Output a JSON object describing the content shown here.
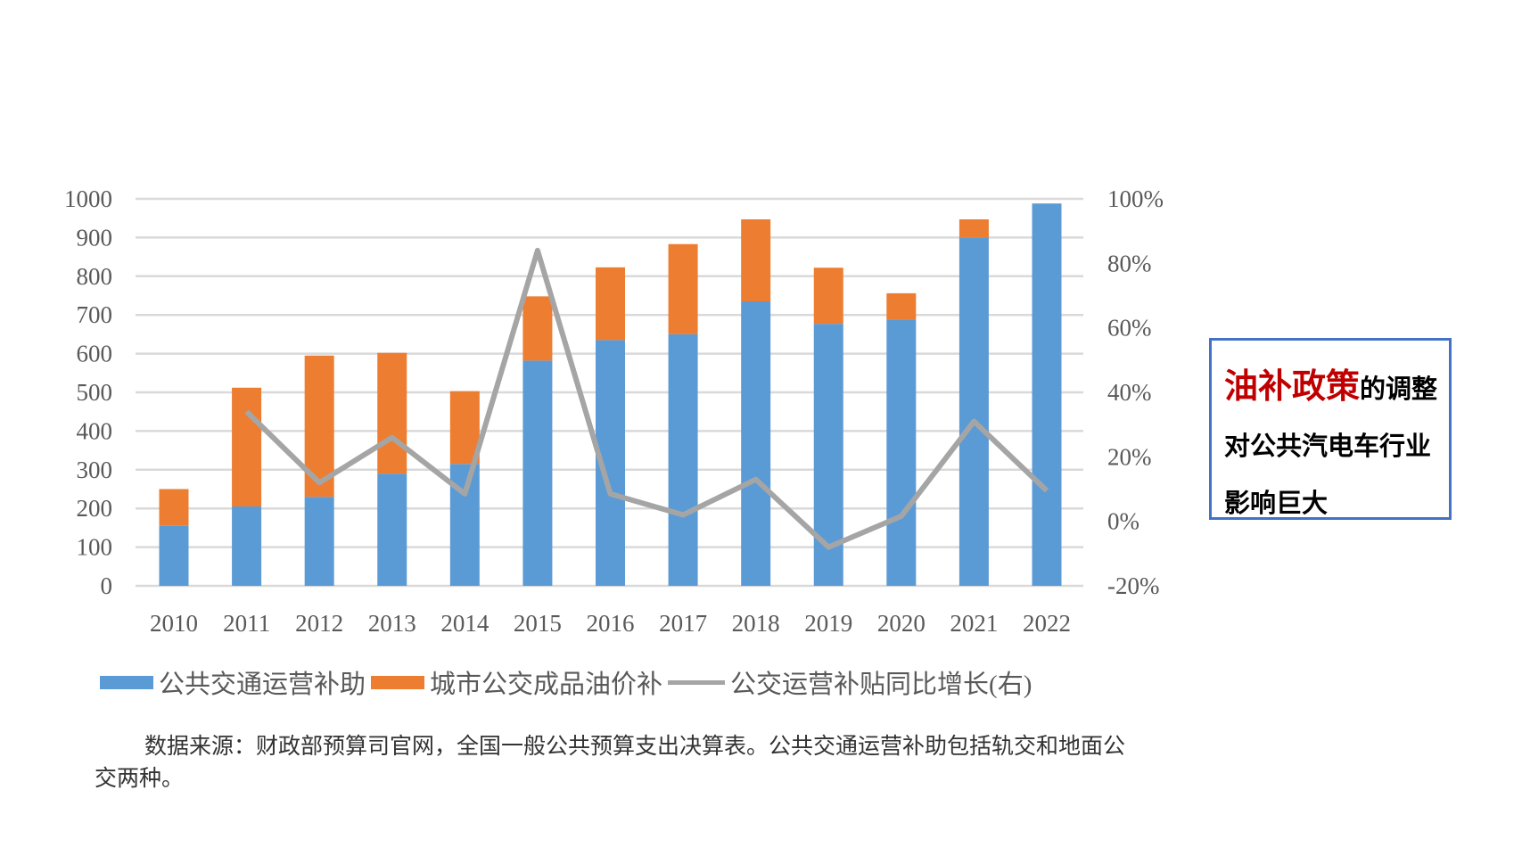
{
  "chart_data": {
    "type": "bar",
    "stacked": true,
    "categories": [
      "2010",
      "2011",
      "2012",
      "2013",
      "2014",
      "2015",
      "2016",
      "2017",
      "2018",
      "2019",
      "2020",
      "2021",
      "2022"
    ],
    "series": [
      {
        "name": "公共交通运营补助",
        "type": "bar",
        "axis": "left",
        "color": "#5b9bd5",
        "values": [
          155,
          205,
          230,
          290,
          315,
          582,
          635,
          650,
          735,
          677,
          688,
          900,
          988
        ]
      },
      {
        "name": "城市公交成品油价补",
        "type": "bar",
        "axis": "left",
        "color": "#ed7d31",
        "values": [
          95,
          307,
          365,
          312,
          188,
          166,
          188,
          233,
          212,
          145,
          68,
          47,
          0
        ]
      },
      {
        "name": "公交运营补贴同比增长(右)",
        "type": "line",
        "axis": "right",
        "color": "#a5a5a5",
        "values": [
          null,
          34,
          12,
          26,
          8.5,
          84,
          8.5,
          2,
          13,
          -8,
          1.6,
          31,
          9.5
        ]
      }
    ],
    "y_left": {
      "range": [
        0,
        1000
      ],
      "ticks": [
        "0",
        "100",
        "200",
        "300",
        "400",
        "500",
        "600",
        "700",
        "800",
        "900",
        "1000"
      ]
    },
    "y_right": {
      "range": [
        -20,
        100
      ],
      "ticks": [
        "-20%",
        "0%",
        "20%",
        "40%",
        "60%",
        "80%",
        "100%"
      ]
    },
    "grid": true,
    "legend_position": "bottom"
  },
  "source_note": "数据来源：财政部预算司官网，全国一般公共预算支出决算表。公共交通运营补助包括轨交和地面公交两种。",
  "callout": {
    "highlight": "油补政策",
    "rest": "的调整对公共汽电车行业影响巨大"
  }
}
